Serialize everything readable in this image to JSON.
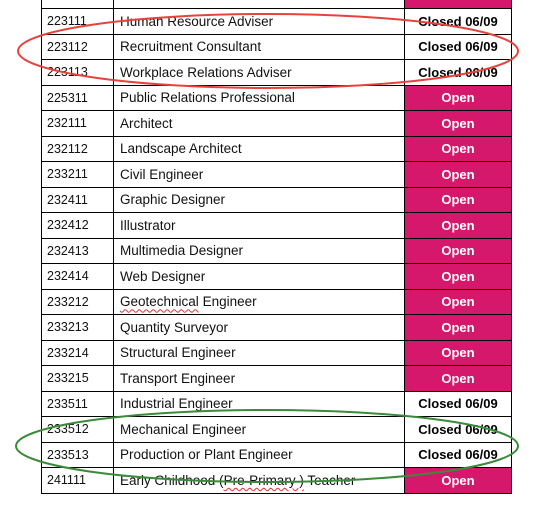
{
  "colors": {
    "open_bg": "#d6186d",
    "red_ellipse": "#e8423c",
    "green_ellipse": "#3a8a3a"
  },
  "rows": [
    {
      "code": "223111",
      "title": "Human Resource Adviser",
      "status": "Closed 06/09",
      "state": "closed"
    },
    {
      "code": "223112",
      "title": "Recruitment Consultant",
      "status": "Closed 06/09",
      "state": "closed"
    },
    {
      "code": "223113",
      "title": "Workplace Relations Adviser",
      "status": "Closed 06/09",
      "state": "closed"
    },
    {
      "code": "225311",
      "title": "Public Relations Professional",
      "status": "Open",
      "state": "open"
    },
    {
      "code": "232111",
      "title": "Architect",
      "status": "Open",
      "state": "open"
    },
    {
      "code": "232112",
      "title": "Landscape Architect",
      "status": "Open",
      "state": "open"
    },
    {
      "code": "233211",
      "title": "Civil Engineer",
      "status": "Open",
      "state": "open"
    },
    {
      "code": "232411",
      "title": "Graphic Designer",
      "status": "Open",
      "state": "open"
    },
    {
      "code": "232412",
      "title": "Illustrator",
      "status": "Open",
      "state": "open"
    },
    {
      "code": "232413",
      "title": "Multimedia Designer",
      "status": "Open",
      "state": "open"
    },
    {
      "code": "232414",
      "title": "Web Designer",
      "status": "Open",
      "state": "open"
    },
    {
      "code": "233212",
      "title": "Geotechnical Engineer",
      "status": "Open",
      "state": "open"
    },
    {
      "code": "233213",
      "title": "Quantity Surveyor",
      "status": "Open",
      "state": "open"
    },
    {
      "code": "233214",
      "title": "Structural Engineer",
      "status": "Open",
      "state": "open"
    },
    {
      "code": "233215",
      "title": "Transport Engineer",
      "status": "Open",
      "state": "open"
    },
    {
      "code": "233511",
      "title": "Industrial Engineer",
      "status": "Closed 06/09",
      "state": "closed"
    },
    {
      "code": "233512",
      "title": "Mechanical Engineer",
      "status": "Closed 06/09",
      "state": "closed"
    },
    {
      "code": "233513",
      "title": "Production or Plant Engineer",
      "status": "Closed 06/09",
      "state": "closed"
    },
    {
      "code": "241111",
      "title": "Early Childhood (Pre-Primary ) Teacher",
      "status": "Open",
      "state": "open"
    }
  ]
}
